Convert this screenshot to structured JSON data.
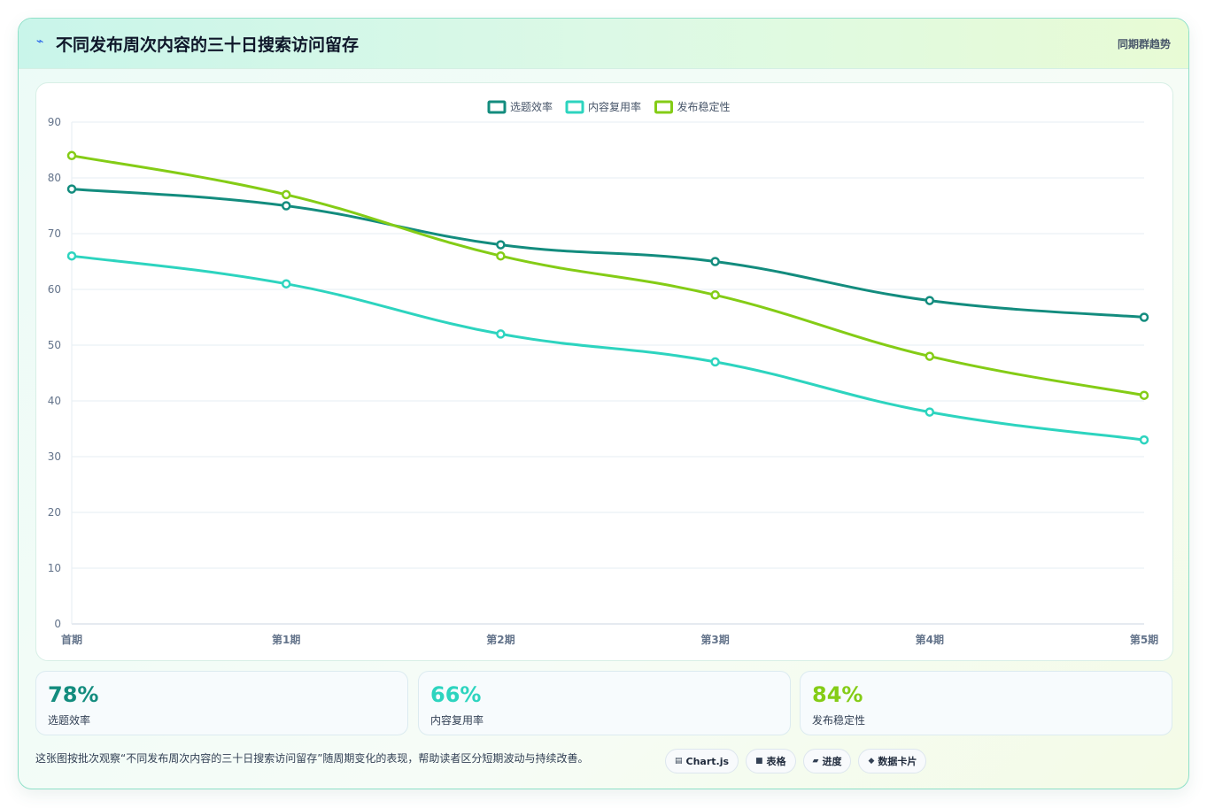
{
  "header": {
    "title": "不同发布周次内容的三十日搜索访问留存",
    "tag": "同期群趋势",
    "icon": "lightning-icon"
  },
  "chart_data": {
    "type": "line",
    "title": "",
    "xlabel": "",
    "ylabel": "",
    "categories": [
      "首期",
      "第1期",
      "第2期",
      "第3期",
      "第4期",
      "第5期"
    ],
    "ylim": [
      0,
      90
    ],
    "yticks": [
      0,
      10,
      20,
      30,
      40,
      50,
      60,
      70,
      80,
      90
    ],
    "grid": true,
    "legend": "top-center",
    "series": [
      {
        "name": "选题效率",
        "color": "#138c7e",
        "values": [
          78,
          75,
          68,
          65,
          58,
          55
        ]
      },
      {
        "name": "内容复用率",
        "color": "#2dd4bf",
        "values": [
          66,
          61,
          52,
          47,
          38,
          33
        ]
      },
      {
        "name": "发布稳定性",
        "color": "#84cc16",
        "values": [
          84,
          77,
          66,
          59,
          48,
          41
        ]
      }
    ]
  },
  "kpis": [
    {
      "value": "78%",
      "label": "选题效率",
      "color": "#138c7e"
    },
    {
      "value": "66%",
      "label": "内容复用率",
      "color": "#2dd4bf"
    },
    {
      "value": "84%",
      "label": "发布稳定性",
      "color": "#84cc16"
    }
  ],
  "footnote": "这张图按批次观察“不同发布周次内容的三十日搜索访问留存”随周期变化的表现，帮助读者区分短期波动与持续改善。",
  "pills": [
    {
      "icon": "chart-icon",
      "glyph": "▤",
      "label": "Chart.js"
    },
    {
      "icon": "table-icon",
      "glyph": "■",
      "label": "表格"
    },
    {
      "icon": "progress-icon",
      "glyph": "▰",
      "label": "进度"
    },
    {
      "icon": "card-icon",
      "glyph": "◆",
      "label": "数据卡片"
    }
  ]
}
